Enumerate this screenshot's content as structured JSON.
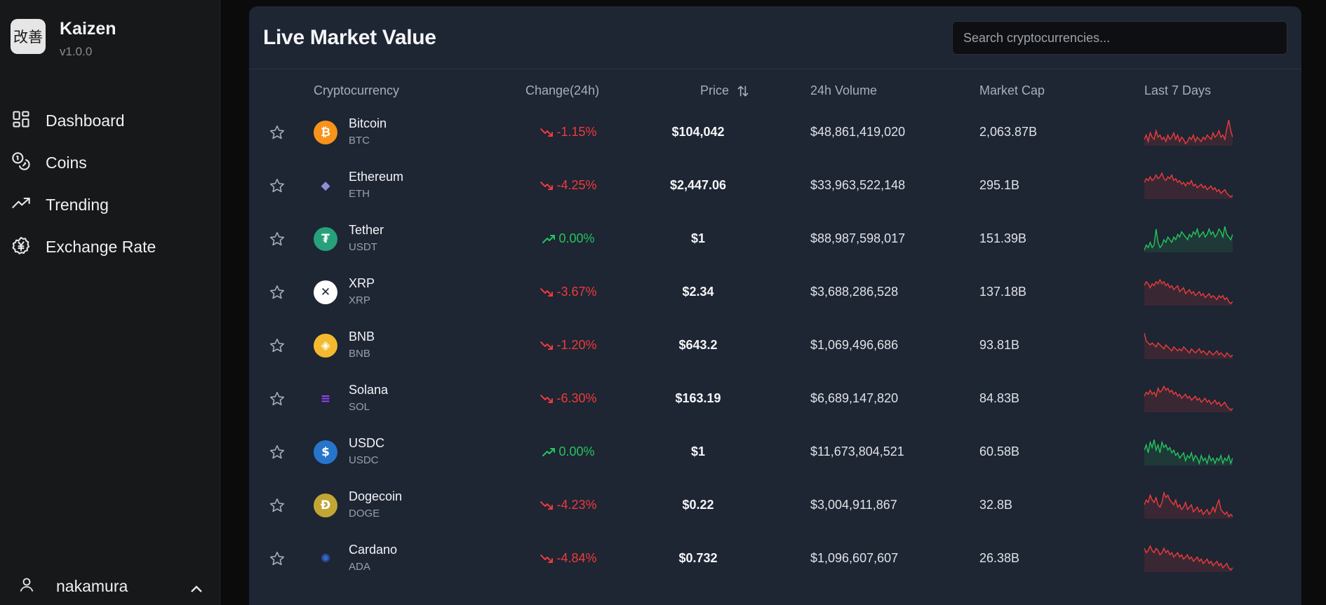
{
  "app": {
    "logo_text": "改善",
    "name": "Kaizen",
    "version": "v1.0.0"
  },
  "sidebar": {
    "items": [
      {
        "label": "Dashboard",
        "icon": "dashboard-icon"
      },
      {
        "label": "Coins",
        "icon": "coins-icon"
      },
      {
        "label": "Trending",
        "icon": "trending-icon"
      },
      {
        "label": "Exchange Rate",
        "icon": "exchange-icon"
      }
    ],
    "user": {
      "name": "nakamura",
      "icon": "user-icon"
    }
  },
  "main": {
    "title": "Live Market Value",
    "search_placeholder": "Search cryptocurrencies...",
    "columns": {
      "crypto": "Cryptocurrency",
      "change": "Change(24h)",
      "price": "Price",
      "volume": "24h Volume",
      "mcap": "Market Cap",
      "last7": "Last 7 Days"
    },
    "colors": {
      "up": "#22c55e",
      "down": "#ef3b3b"
    },
    "rows": [
      {
        "name": "Bitcoin",
        "symbol": "BTC",
        "change": "-1.15%",
        "direction": "down",
        "price": "$104,042",
        "volume": "$48,861,419,020",
        "mcap": "2,063.87B",
        "icon_glyph": "₿",
        "icon_bg": "#f7931a",
        "icon_fg": "#ffffff",
        "spark": [
          5,
          7,
          4,
          8,
          6,
          5,
          9,
          6,
          7,
          5,
          6,
          4,
          7,
          5,
          6,
          8,
          5,
          7,
          4,
          6,
          5,
          3,
          4,
          6,
          5,
          7,
          4,
          6,
          5,
          4,
          6,
          5,
          7,
          6,
          5,
          8,
          6,
          7,
          9,
          6,
          7,
          5,
          10,
          14,
          9,
          6
        ]
      },
      {
        "name": "Ethereum",
        "symbol": "ETH",
        "change": "-4.25%",
        "direction": "down",
        "price": "$2,447.06",
        "volume": "$33,963,522,148",
        "mcap": "295.1B",
        "icon_glyph": "◆",
        "icon_bg": "transparent",
        "icon_fg": "#8c8fd6",
        "spark": [
          10,
          12,
          11,
          13,
          11,
          12,
          14,
          12,
          13,
          15,
          12,
          11,
          13,
          12,
          14,
          11,
          12,
          10,
          11,
          9,
          10,
          8,
          10,
          9,
          11,
          8,
          9,
          7,
          8,
          9,
          7,
          8,
          6,
          7,
          8,
          6,
          7,
          5,
          6,
          4,
          5,
          6,
          4,
          3,
          2,
          3
        ]
      },
      {
        "name": "Tether",
        "symbol": "USDT",
        "change": "0.00%",
        "direction": "up",
        "price": "$1",
        "volume": "$88,987,598,017",
        "mcap": "151.39B",
        "icon_glyph": "₮",
        "icon_bg": "#26a17b",
        "icon_fg": "#ffffff",
        "spark": [
          4,
          6,
          5,
          7,
          5,
          6,
          12,
          7,
          5,
          6,
          8,
          7,
          9,
          8,
          7,
          9,
          8,
          10,
          9,
          11,
          10,
          9,
          8,
          10,
          9,
          11,
          10,
          12,
          9,
          10,
          11,
          9,
          10,
          12,
          10,
          11,
          9,
          10,
          12,
          11,
          9,
          13,
          10,
          9,
          8,
          10
        ]
      },
      {
        "name": "XRP",
        "symbol": "XRP",
        "change": "-3.67%",
        "direction": "down",
        "price": "$2.34",
        "volume": "$3,688,286,528",
        "mcap": "137.18B",
        "icon_glyph": "✕",
        "icon_bg": "#ffffff",
        "icon_fg": "#23292f",
        "spark": [
          11,
          13,
          12,
          10,
          12,
          11,
          13,
          12,
          14,
          12,
          13,
          11,
          12,
          10,
          11,
          9,
          10,
          11,
          8,
          9,
          10,
          7,
          8,
          9,
          7,
          8,
          6,
          7,
          8,
          6,
          7,
          5,
          6,
          7,
          5,
          6,
          5,
          4,
          6,
          5,
          6,
          4,
          5,
          3,
          2,
          3
        ]
      },
      {
        "name": "BNB",
        "symbol": "BNB",
        "change": "-1.20%",
        "direction": "down",
        "price": "$643.2",
        "volume": "$1,069,496,686",
        "mcap": "93.81B",
        "icon_glyph": "◈",
        "icon_bg": "#f3ba2f",
        "icon_fg": "#ffffff",
        "spark": [
          14,
          10,
          9,
          8,
          9,
          8,
          7,
          9,
          8,
          7,
          6,
          8,
          7,
          6,
          5,
          7,
          6,
          5,
          6,
          5,
          7,
          6,
          5,
          4,
          6,
          5,
          4,
          5,
          6,
          4,
          5,
          4,
          3,
          5,
          4,
          3,
          4,
          5,
          3,
          4,
          3,
          2,
          4,
          3,
          2,
          3
        ]
      },
      {
        "name": "Solana",
        "symbol": "SOL",
        "change": "-6.30%",
        "direction": "down",
        "price": "$163.19",
        "volume": "$6,689,147,820",
        "mcap": "84.83B",
        "icon_glyph": "≡",
        "icon_bg": "transparent",
        "icon_fg": "#9945ff",
        "spark": [
          9,
          11,
          10,
          12,
          10,
          11,
          9,
          13,
          11,
          12,
          14,
          12,
          13,
          11,
          12,
          10,
          11,
          9,
          10,
          8,
          9,
          10,
          8,
          9,
          7,
          8,
          9,
          7,
          8,
          6,
          7,
          8,
          6,
          7,
          5,
          6,
          7,
          5,
          6,
          4,
          5,
          6,
          4,
          3,
          2,
          3
        ]
      },
      {
        "name": "USDC",
        "symbol": "USDC",
        "change": "0.00%",
        "direction": "up",
        "price": "$1",
        "volume": "$11,673,804,521",
        "mcap": "60.58B",
        "icon_glyph": "$",
        "icon_bg": "#2775ca",
        "icon_fg": "#ffffff",
        "spark": [
          10,
          12,
          9,
          13,
          11,
          14,
          10,
          12,
          9,
          13,
          11,
          12,
          10,
          11,
          9,
          10,
          8,
          9,
          7,
          8,
          9,
          6,
          8,
          7,
          9,
          6,
          8,
          7,
          5,
          8,
          6,
          7,
          5,
          8,
          6,
          7,
          5,
          7,
          6,
          8,
          5,
          7,
          6,
          8,
          5,
          7
        ]
      },
      {
        "name": "Dogecoin",
        "symbol": "DOGE",
        "change": "-4.23%",
        "direction": "down",
        "price": "$0.22",
        "volume": "$3,004,911,867",
        "mcap": "32.8B",
        "icon_glyph": "Ð",
        "icon_bg": "#c2a633",
        "icon_fg": "#ffffff",
        "spark": [
          8,
          10,
          9,
          12,
          10,
          9,
          11,
          8,
          7,
          9,
          13,
          11,
          12,
          10,
          9,
          8,
          10,
          7,
          8,
          6,
          7,
          9,
          6,
          7,
          8,
          5,
          6,
          7,
          5,
          6,
          4,
          5,
          6,
          4,
          5,
          7,
          5,
          8,
          10,
          6,
          5,
          4,
          5,
          3,
          4,
          3
        ]
      },
      {
        "name": "Cardano",
        "symbol": "ADA",
        "change": "-4.84%",
        "direction": "down",
        "price": "$0.732",
        "volume": "$1,096,607,607",
        "mcap": "26.38B",
        "icon_glyph": "✺",
        "icon_bg": "transparent",
        "icon_fg": "#3468d1",
        "spark": [
          12,
          10,
          11,
          13,
          11,
          10,
          12,
          11,
          9,
          10,
          12,
          10,
          11,
          9,
          10,
          8,
          9,
          10,
          8,
          9,
          7,
          8,
          9,
          7,
          8,
          6,
          7,
          8,
          6,
          7,
          5,
          6,
          7,
          5,
          6,
          4,
          5,
          6,
          4,
          5,
          3,
          4,
          5,
          3,
          2,
          3
        ]
      }
    ]
  }
}
